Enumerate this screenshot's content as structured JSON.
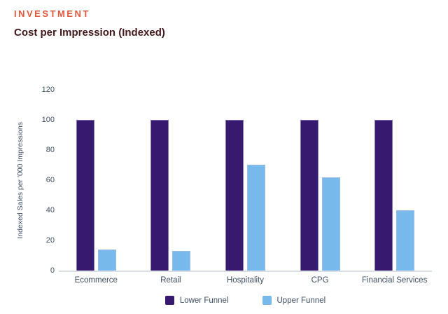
{
  "header": {
    "eyebrow": "INVESTMENT",
    "title": "Cost per Impression (Indexed)"
  },
  "chart_data": {
    "type": "bar",
    "categories": [
      "Ecommerce",
      "Retail",
      "Hospitality",
      "CPG",
      "Financial Services"
    ],
    "series": [
      {
        "name": "Lower Funnel",
        "color": "#371A70",
        "values": [
          100,
          100,
          100,
          100,
          100
        ]
      },
      {
        "name": "Upper Funnel",
        "color": "#77B9EA",
        "values": [
          14,
          13,
          70,
          62,
          40
        ]
      }
    ],
    "title": "Cost per Impression (Indexed)",
    "xlabel": "",
    "ylabel": "Indexed Sales per '000 Impressions",
    "ylim": [
      0,
      120
    ],
    "yticks": [
      0,
      20,
      40,
      60,
      80,
      100,
      120
    ],
    "grid": false,
    "legend_position": "bottom"
  },
  "colors": {
    "eyebrow": "#E1573B",
    "title": "#44171B",
    "axis_text": "#3E4E63",
    "baseline": "#DADFE6",
    "lower_funnel": "#371A70",
    "upper_funnel": "#77B9EA"
  }
}
